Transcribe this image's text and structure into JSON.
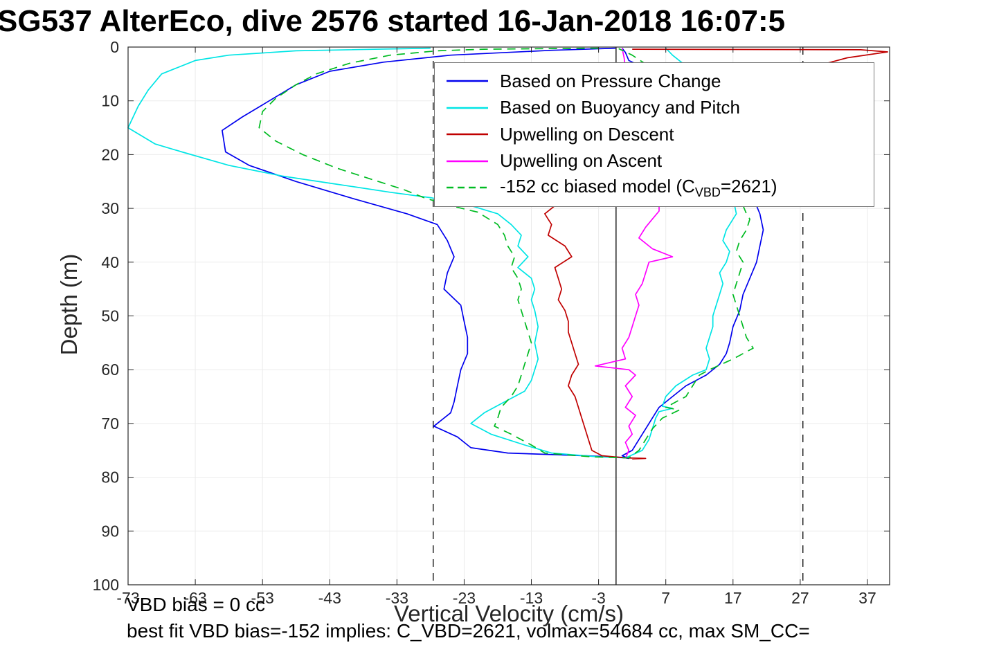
{
  "annotations": {
    "vbd_bias": "VBD bias = 0 cc",
    "best_fit": "best fit VBD bias=-152 implies: C_VBD=2621, volmax=54684 cc, max SM_CC="
  },
  "chart_data": {
    "type": "line",
    "title": "SG537 AlterEco, dive 2576 started 16-Jan-2018 16:07:5",
    "xlabel": "Vertical Velocity (cm/s)",
    "ylabel": "Depth (m)",
    "xlim": [
      -73,
      40.3
    ],
    "ylim": [
      0,
      100
    ],
    "y_axis": "depth, increasing downward",
    "grid": true,
    "xticks": [
      -73,
      -63,
      -53,
      -43,
      -33,
      -23,
      -13,
      -3,
      7,
      17,
      27,
      37
    ],
    "yticks": [
      0,
      10,
      20,
      30,
      40,
      50,
      60,
      70,
      80,
      90,
      100
    ],
    "reference_lines": [
      {
        "x": -0.4,
        "style": "solid",
        "color": "#000000"
      },
      {
        "x": -27.6,
        "style": "dashed",
        "color": "#000000"
      },
      {
        "x": 27.4,
        "style": "dashed",
        "color": "#000000"
      }
    ],
    "legend": {
      "position": "north",
      "entries": [
        {
          "prefix": "Based on Pressure Change",
          "sub": "",
          "suffix": "",
          "color": "#0000EE",
          "dash": false
        },
        {
          "prefix": "Based on Buoyancy and Pitch",
          "sub": "",
          "suffix": "",
          "color": "#00E5E5",
          "dash": false
        },
        {
          "prefix": "Upwelling on Descent",
          "sub": "",
          "suffix": "",
          "color": "#C00000",
          "dash": false
        },
        {
          "prefix": "Upwelling on Ascent",
          "sub": "",
          "suffix": "",
          "color": "#FF00FF",
          "dash": false
        },
        {
          "prefix": "-152 cc biased model (C",
          "sub": "VBD",
          "suffix": "=2621)",
          "color": "#00BB22",
          "dash": true
        }
      ]
    },
    "series": [
      {
        "id": "pressure",
        "name": "Based on Pressure Change",
        "color": "#0000EE",
        "dash": false,
        "points": [
          [
            -0.5,
            0.2
          ],
          [
            -10,
            0.6
          ],
          [
            -25,
            1.5
          ],
          [
            -35,
            2.8
          ],
          [
            -43,
            4.5
          ],
          [
            -48,
            7
          ],
          [
            -52,
            10
          ],
          [
            -56,
            13
          ],
          [
            -59,
            15.5
          ],
          [
            -58.5,
            19.5
          ],
          [
            -55,
            22
          ],
          [
            -48,
            25
          ],
          [
            -40,
            28
          ],
          [
            -31.5,
            31
          ],
          [
            -27,
            33
          ],
          [
            -25.5,
            36
          ],
          [
            -24.5,
            39
          ],
          [
            -25.5,
            42
          ],
          [
            -26,
            45
          ],
          [
            -23.5,
            48
          ],
          [
            -23,
            51
          ],
          [
            -22.5,
            54
          ],
          [
            -22.5,
            57
          ],
          [
            -23.5,
            60
          ],
          [
            -24,
            63
          ],
          [
            -24.5,
            66
          ],
          [
            -25,
            68
          ],
          [
            -27.5,
            70.5
          ],
          [
            -24,
            72.5
          ],
          [
            -22,
            74.5
          ],
          [
            -16.5,
            75.5
          ],
          [
            -5,
            76
          ],
          [
            0.5,
            76.3
          ],
          [
            1.5,
            76.5
          ],
          [
            0.5,
            76
          ],
          [
            2,
            75
          ],
          [
            3,
            73
          ],
          [
            4,
            71
          ],
          [
            5,
            69
          ],
          [
            6,
            67
          ],
          [
            8,
            65
          ],
          [
            10,
            63
          ],
          [
            13,
            61
          ],
          [
            15,
            59
          ],
          [
            16,
            57
          ],
          [
            16.5,
            55
          ],
          [
            17,
            52
          ],
          [
            18,
            49
          ],
          [
            18.5,
            46
          ],
          [
            19.5,
            43
          ],
          [
            20.5,
            40
          ],
          [
            21,
            37
          ],
          [
            21.5,
            34
          ],
          [
            21,
            31
          ],
          [
            20,
            28
          ],
          [
            18,
            24
          ],
          [
            15,
            18
          ],
          [
            12,
            12
          ],
          [
            8,
            7
          ],
          [
            4,
            4
          ],
          [
            1.5,
            2.5
          ],
          [
            1,
            1
          ],
          [
            0.5,
            0.2
          ]
        ]
      },
      {
        "id": "buoyancy-pitch",
        "name": "Based on Buoyancy and Pitch",
        "color": "#00E5E5",
        "dash": false,
        "points": [
          [
            -28,
            0.2
          ],
          [
            -48,
            0.7
          ],
          [
            -58,
            1.5
          ],
          [
            -63,
            2.5
          ],
          [
            -68,
            5
          ],
          [
            -70,
            8
          ],
          [
            -71.5,
            11
          ],
          [
            -73,
            15
          ],
          [
            -69,
            18
          ],
          [
            -65,
            19.5
          ],
          [
            -58,
            22
          ],
          [
            -50,
            24
          ],
          [
            -42,
            25.5
          ],
          [
            -34,
            27
          ],
          [
            -28,
            28
          ],
          [
            -22,
            29.5
          ],
          [
            -18,
            31
          ],
          [
            -16,
            33
          ],
          [
            -14.5,
            35
          ],
          [
            -15,
            37
          ],
          [
            -13.5,
            39
          ],
          [
            -15,
            41
          ],
          [
            -13,
            43
          ],
          [
            -12.5,
            45
          ],
          [
            -13,
            47
          ],
          [
            -12.5,
            49
          ],
          [
            -12,
            52
          ],
          [
            -12.5,
            55
          ],
          [
            -12,
            58
          ],
          [
            -12.5,
            60
          ],
          [
            -13,
            62
          ],
          [
            -14,
            64
          ],
          [
            -17,
            66
          ],
          [
            -20,
            68
          ],
          [
            -22,
            70
          ],
          [
            -19,
            72
          ],
          [
            -14,
            74
          ],
          [
            -10,
            75.5
          ],
          [
            -3,
            76.2
          ],
          [
            1,
            76.4
          ],
          [
            3.5,
            75
          ],
          [
            4.5,
            73
          ],
          [
            5,
            71
          ],
          [
            5.5,
            69
          ],
          [
            6,
            67.8
          ],
          [
            8,
            67.2
          ],
          [
            6.5,
            66.8
          ],
          [
            7,
            65
          ],
          [
            8.5,
            63
          ],
          [
            11,
            61
          ],
          [
            13,
            60
          ],
          [
            13.5,
            58
          ],
          [
            13,
            56
          ],
          [
            13.5,
            54
          ],
          [
            14,
            52
          ],
          [
            14,
            50
          ],
          [
            14.5,
            48
          ],
          [
            15,
            46
          ],
          [
            15.5,
            44
          ],
          [
            15,
            42
          ],
          [
            16,
            40
          ],
          [
            16.5,
            38
          ],
          [
            15.5,
            36
          ],
          [
            16,
            34
          ],
          [
            17,
            32
          ],
          [
            17.5,
            31
          ],
          [
            17,
            28
          ],
          [
            16.5,
            24
          ],
          [
            16,
            18
          ],
          [
            15,
            12
          ],
          [
            13,
            7
          ],
          [
            10,
            3.5
          ],
          [
            8,
            1.5
          ],
          [
            7,
            0.2
          ]
        ]
      },
      {
        "id": "upwelling-descent",
        "name": "Upwelling on Descent",
        "color": "#C00000",
        "dash": false,
        "points": [
          [
            2,
            0.4
          ],
          [
            36,
            0.5
          ],
          [
            40,
            0.9
          ],
          [
            34,
            2
          ],
          [
            31,
            3
          ],
          [
            24,
            5
          ],
          [
            15,
            8
          ],
          [
            8,
            12
          ],
          [
            3,
            17
          ],
          [
            -2,
            22
          ],
          [
            -6,
            26
          ],
          [
            -9,
            29
          ],
          [
            -11,
            31
          ],
          [
            -10,
            33
          ],
          [
            -10.5,
            35
          ],
          [
            -8,
            37
          ],
          [
            -7,
            39
          ],
          [
            -9.5,
            41
          ],
          [
            -9,
            43
          ],
          [
            -8.5,
            45
          ],
          [
            -9,
            47
          ],
          [
            -8,
            49
          ],
          [
            -7.5,
            51
          ],
          [
            -7.5,
            53
          ],
          [
            -7,
            55
          ],
          [
            -6.5,
            57
          ],
          [
            -6,
            59
          ],
          [
            -7,
            61
          ],
          [
            -7.5,
            63
          ],
          [
            -6.5,
            65
          ],
          [
            -6,
            67
          ],
          [
            -5.5,
            69
          ],
          [
            -5,
            71
          ],
          [
            -4.5,
            73
          ],
          [
            -4,
            75
          ],
          [
            -2.5,
            76
          ],
          [
            1,
            76.4
          ],
          [
            4,
            76.5
          ],
          [
            2,
            76.6
          ]
        ]
      },
      {
        "id": "upwelling-ascent",
        "name": "Upwelling on Ascent",
        "color": "#FF00FF",
        "dash": false,
        "points": [
          [
            0.5,
            0.2
          ],
          [
            0.8,
            2
          ],
          [
            1,
            4
          ],
          [
            1.5,
            8
          ],
          [
            2,
            14
          ],
          [
            3,
            20
          ],
          [
            4,
            25
          ],
          [
            6,
            29
          ],
          [
            6,
            30.5
          ],
          [
            5,
            32
          ],
          [
            4,
            33.5
          ],
          [
            3,
            35.5
          ],
          [
            5,
            37.5
          ],
          [
            8,
            39
          ],
          [
            4.5,
            40
          ],
          [
            4,
            42
          ],
          [
            3.5,
            44
          ],
          [
            2.5,
            46
          ],
          [
            3,
            48
          ],
          [
            2.5,
            50
          ],
          [
            2,
            52
          ],
          [
            1.5,
            54
          ],
          [
            0.5,
            56
          ],
          [
            1,
            58
          ],
          [
            -3.5,
            59.3
          ],
          [
            1.5,
            60
          ],
          [
            2.5,
            61
          ],
          [
            1,
            63
          ],
          [
            2,
            65
          ],
          [
            1,
            67
          ],
          [
            2.5,
            68.5
          ],
          [
            1.5,
            70.5
          ],
          [
            2,
            72
          ],
          [
            1,
            73.5
          ],
          [
            1.5,
            75
          ],
          [
            1,
            76.5
          ]
        ]
      },
      {
        "id": "biased-model",
        "name": "-152 cc biased model (C_VBD=2621)",
        "color": "#00BB22",
        "dash": true,
        "points": [
          [
            -3,
            0.2
          ],
          [
            -20,
            0.4
          ],
          [
            -27,
            0.7
          ],
          [
            -34,
            1.5
          ],
          [
            -40,
            3
          ],
          [
            -45,
            5
          ],
          [
            -48,
            7
          ],
          [
            -51,
            9.5
          ],
          [
            -53,
            12
          ],
          [
            -53.5,
            15
          ],
          [
            -51,
            17.5
          ],
          [
            -47,
            20
          ],
          [
            -42,
            22.5
          ],
          [
            -37,
            24.5
          ],
          [
            -32,
            26.5
          ],
          [
            -29,
            28
          ],
          [
            -25,
            29.5
          ],
          [
            -21,
            30.7
          ],
          [
            -18,
            33
          ],
          [
            -17,
            35
          ],
          [
            -16.5,
            37
          ],
          [
            -15.5,
            39
          ],
          [
            -16,
            41
          ],
          [
            -15,
            43
          ],
          [
            -14.5,
            45
          ],
          [
            -15,
            47
          ],
          [
            -14.5,
            49
          ],
          [
            -14,
            51
          ],
          [
            -13.5,
            53
          ],
          [
            -13,
            55
          ],
          [
            -13.5,
            57
          ],
          [
            -14,
            59
          ],
          [
            -14.5,
            61
          ],
          [
            -15,
            63
          ],
          [
            -16,
            65
          ],
          [
            -17.5,
            67
          ],
          [
            -18,
            69
          ],
          [
            -18.5,
            70.5
          ],
          [
            -16,
            72
          ],
          [
            -13,
            74
          ],
          [
            -11,
            75.5
          ],
          [
            -4,
            76.2
          ],
          [
            1.5,
            76.4
          ],
          [
            3,
            75
          ],
          [
            4,
            73
          ],
          [
            5,
            71
          ],
          [
            6.5,
            69
          ],
          [
            9,
            67.5
          ],
          [
            7,
            67
          ],
          [
            10,
            65
          ],
          [
            11,
            63
          ],
          [
            12,
            61
          ],
          [
            13.5,
            60
          ],
          [
            17,
            58
          ],
          [
            20,
            56
          ],
          [
            19,
            54
          ],
          [
            18.5,
            52
          ],
          [
            18,
            50
          ],
          [
            17.5,
            48
          ],
          [
            17,
            46
          ],
          [
            17.5,
            44
          ],
          [
            18,
            42
          ],
          [
            18.5,
            40
          ],
          [
            17.5,
            38
          ],
          [
            18,
            36
          ],
          [
            19,
            34
          ],
          [
            19.5,
            32
          ],
          [
            19,
            31
          ],
          [
            18,
            28
          ],
          [
            16,
            23
          ],
          [
            13,
            16
          ],
          [
            9,
            9
          ],
          [
            5,
            4
          ],
          [
            2,
            1.5
          ],
          [
            0,
            0.3
          ]
        ]
      }
    ]
  }
}
